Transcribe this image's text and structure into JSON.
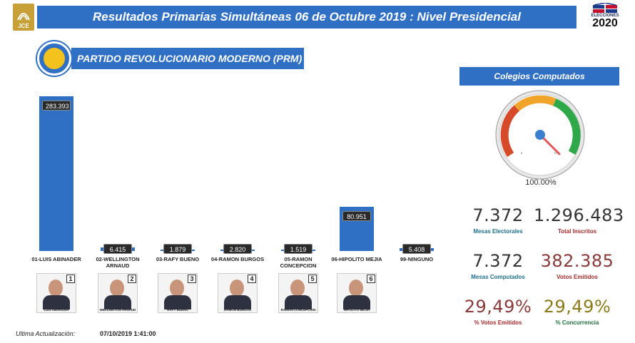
{
  "header": {
    "title": "Resultados Primarias Simultáneas 06 de Octubre 2019 : Nivel Presidencial",
    "jce_logo_text": "JCE",
    "elecciones_word": "ELECCIONES",
    "elecciones_year": "2020"
  },
  "party": {
    "name": "PARTIDO REVOLUCIONARIO MODERNO (PRM)",
    "color": "#2f6fc4"
  },
  "chart_data": {
    "type": "bar",
    "categories": [
      "01-LUIS ABINADER",
      "02-WELLINGTON ARNAUD",
      "03-RAFY BUENO",
      "04-RAMON BURGOS",
      "05-RAMON CONCEPCION",
      "06-HIPOLITO MEJIA",
      "99-NINGUNO"
    ],
    "values": [
      283393,
      6415,
      1879,
      2820,
      1519,
      80951,
      5408
    ],
    "value_labels": [
      "283.393",
      "6.415",
      "1.879",
      "2.820",
      "1.519",
      "80.951",
      "5.408"
    ],
    "bar_color": "#2f6fc4"
  },
  "candidates": [
    {
      "number": "1",
      "caption": "LUIS ABINADER"
    },
    {
      "number": "2",
      "caption": "WELLINGTON ARNAUD"
    },
    {
      "number": "3",
      "caption": "RAFY BUENO"
    },
    {
      "number": "4",
      "caption": "RAMON BURGOS"
    },
    {
      "number": "5",
      "caption": "RAMON CONCEPCION"
    },
    {
      "number": "6",
      "caption": "HIPOLITO MEJIA"
    }
  ],
  "update": {
    "label": "Ultima Actualización:",
    "value": "07/10/2019 1:41:00"
  },
  "colegios": {
    "title": "Colegios Computados",
    "gauge_fraction": 1.0,
    "gauge_min": "0",
    "gauge_max": "72",
    "percent": "100.00%"
  },
  "stats": [
    {
      "value": "7.372",
      "label": "Mesas Electorales",
      "value_color": "#333333",
      "label_color": "#1f6f8b"
    },
    {
      "value": "1.296.483",
      "label": "Total Inscritos",
      "value_color": "#333333",
      "label_color": "#a52a2a"
    },
    {
      "value": "7.372",
      "label": "Mesas Computados",
      "value_color": "#333333",
      "label_color": "#1f6f8b"
    },
    {
      "value": "382.385",
      "label": "Votos Emitidos",
      "value_color": "#8b3a3a",
      "label_color": "#a52a2a"
    },
    {
      "value": "29,49%",
      "label": "% Votos Emitidos",
      "value_color": "#8b3a3a",
      "label_color": "#a52a2a"
    },
    {
      "value": "29,49%",
      "label": "% Concurrencia",
      "value_color": "#8b7a1a",
      "label_color": "#1f6f3b"
    }
  ]
}
